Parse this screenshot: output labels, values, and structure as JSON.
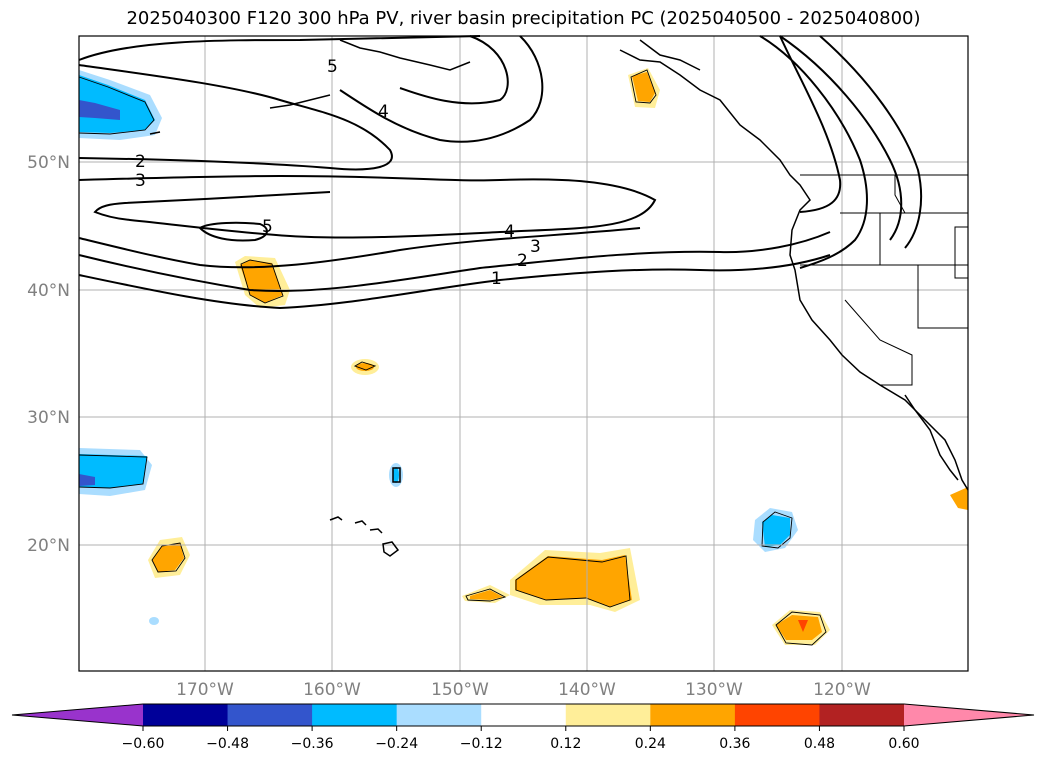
{
  "title": "2025040300 F120 300 hPa PV, river basin precipitation PC (2025040500 - 2025040800)",
  "map": {
    "lat_labels": [
      "50°N",
      "40°N",
      "30°N",
      "20°N"
    ],
    "lon_labels": [
      "170°W",
      "160°W",
      "150°W",
      "140°W",
      "130°W",
      "120°W"
    ],
    "grid": true,
    "pv_contour_labels": [
      "5",
      "4",
      "2",
      "3",
      "5",
      "4",
      "3",
      "2",
      "1"
    ]
  },
  "colorbar": {
    "ticks": [
      "−0.60",
      "−0.48",
      "−0.36",
      "−0.24",
      "−0.12",
      "0.12",
      "0.24",
      "0.36",
      "0.48",
      "0.60"
    ],
    "colors": [
      "#9933cc",
      "#000099",
      "#3355cc",
      "#00bbff",
      "#aaddff",
      "#ffffff",
      "#ffee99",
      "#ffa500",
      "#ff4400",
      "#b22222",
      "#ff88aa"
    ],
    "extend": "both"
  }
}
